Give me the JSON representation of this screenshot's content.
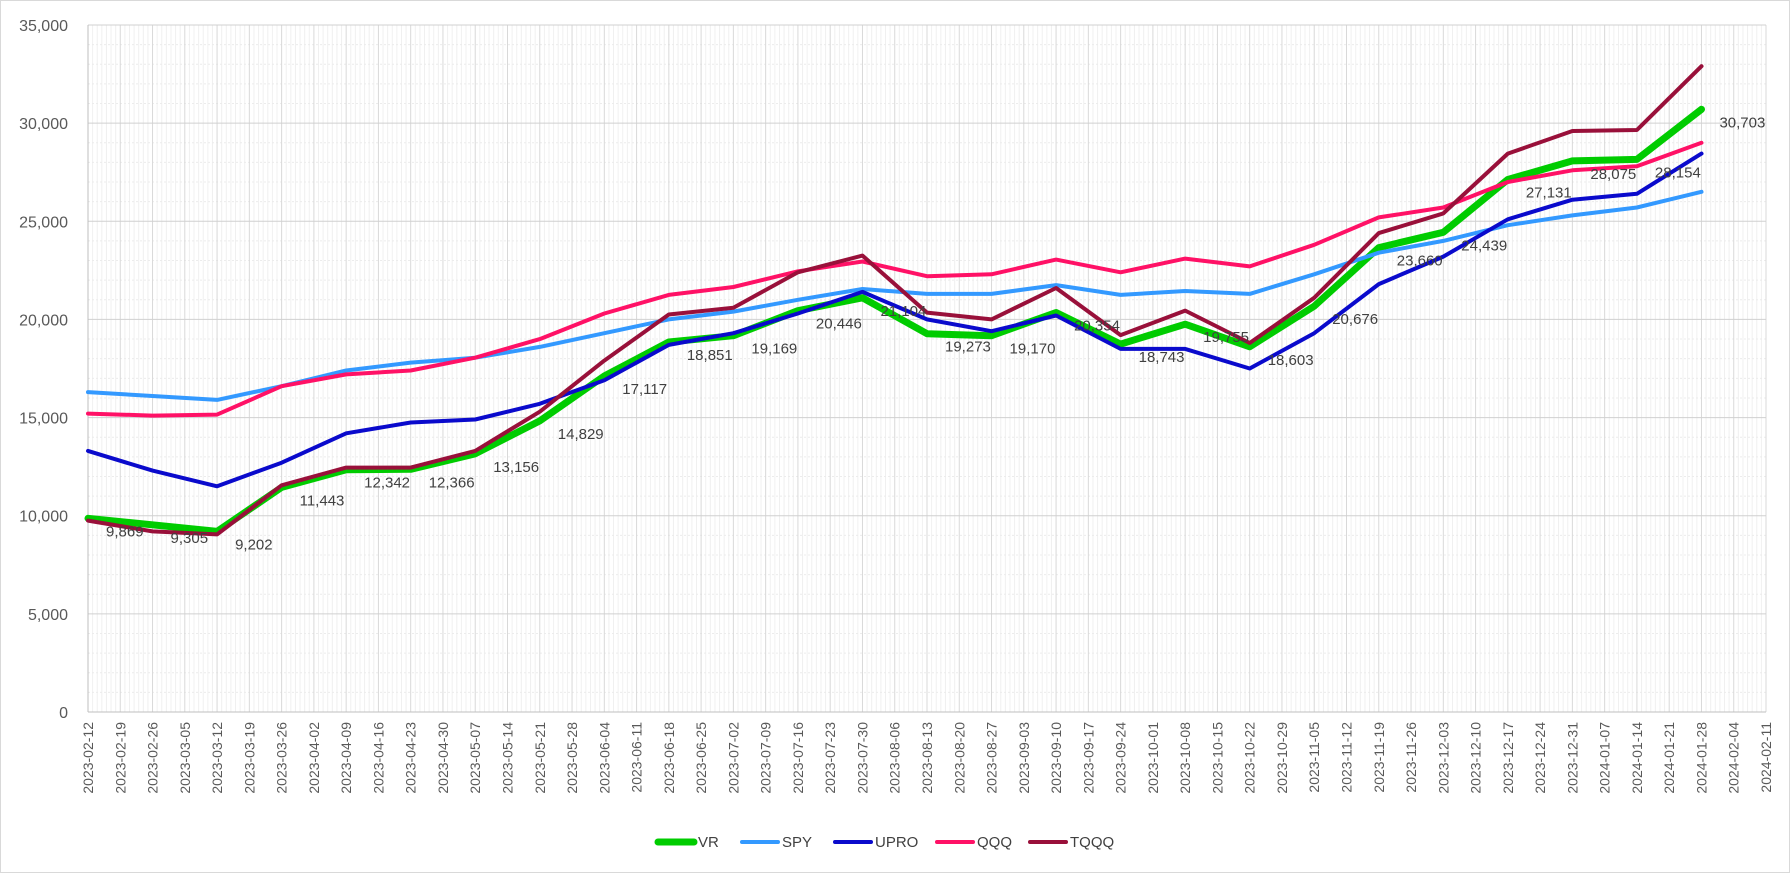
{
  "chart_data": {
    "type": "line",
    "title": "",
    "xlabel": "",
    "ylabel": "",
    "ylim": [
      0,
      35000
    ],
    "y_ticks": [
      0,
      5000,
      10000,
      15000,
      20000,
      25000,
      30000,
      35000
    ],
    "y_tick_labels": [
      "0",
      "5,000",
      "10,000",
      "15,000",
      "20,000",
      "25,000",
      "30,000",
      "35,000"
    ],
    "grid": true,
    "legend": "bottom",
    "x": [
      "2023-02-12",
      "2023-02-19",
      "2023-02-26",
      "2023-03-05",
      "2023-03-12",
      "2023-03-19",
      "2023-03-26",
      "2023-04-02",
      "2023-04-09",
      "2023-04-16",
      "2023-04-23",
      "2023-04-30",
      "2023-05-07",
      "2023-05-14",
      "2023-05-21",
      "2023-05-28",
      "2023-06-04",
      "2023-06-11",
      "2023-06-18",
      "2023-06-25",
      "2023-07-02",
      "2023-07-09",
      "2023-07-16",
      "2023-07-23",
      "2023-07-30",
      "2023-08-06",
      "2023-08-13",
      "2023-08-20",
      "2023-08-27",
      "2023-09-03",
      "2023-09-10",
      "2023-09-17",
      "2023-09-24",
      "2023-10-01",
      "2023-10-08",
      "2023-10-15",
      "2023-10-22",
      "2023-10-29",
      "2023-11-05",
      "2023-11-12",
      "2023-11-19",
      "2023-11-26",
      "2023-12-03",
      "2023-12-10",
      "2023-12-17",
      "2023-12-24",
      "2023-12-31",
      "2024-01-07",
      "2024-01-14",
      "2024-01-21",
      "2024-01-28",
      "2024-02-04",
      "2024-02-11"
    ],
    "series": [
      {
        "name": "VR",
        "color": "#00cc00",
        "width": 7,
        "points": [
          [
            0,
            9869
          ],
          [
            4,
            9202
          ],
          [
            6,
            11443
          ],
          [
            8,
            12342
          ],
          [
            10,
            12366
          ],
          [
            12,
            13156
          ],
          [
            14,
            14829
          ],
          [
            16,
            17117
          ],
          [
            18,
            18851
          ],
          [
            20,
            19169
          ],
          [
            22,
            20446
          ],
          [
            24,
            21104
          ],
          [
            26,
            19273
          ],
          [
            28,
            19170
          ],
          [
            30,
            20354
          ],
          [
            32,
            18743
          ],
          [
            34,
            19755
          ],
          [
            36,
            18603
          ],
          [
            38,
            20676
          ],
          [
            40,
            23660
          ],
          [
            42,
            24439
          ],
          [
            44,
            27131
          ],
          [
            46,
            28075
          ],
          [
            48,
            28154
          ],
          [
            50,
            30703
          ]
        ],
        "labels": [
          {
            "i": 0,
            "text": "9,869",
            "pos": "right"
          },
          {
            "i": 2,
            "text": "9,305",
            "pos": "right"
          },
          {
            "i": 4,
            "text": "9,202",
            "pos": "right"
          },
          {
            "i": 6,
            "text": "11,443",
            "pos": "right"
          },
          {
            "i": 8,
            "text": "12,342",
            "pos": "right"
          },
          {
            "i": 10,
            "text": "12,366",
            "pos": "right"
          },
          {
            "i": 12,
            "text": "13,156",
            "pos": "right"
          },
          {
            "i": 14,
            "text": "14,829",
            "pos": "right"
          },
          {
            "i": 16,
            "text": "17,117",
            "pos": "right"
          },
          {
            "i": 18,
            "text": "18,851",
            "pos": "right"
          },
          {
            "i": 20,
            "text": "19,169",
            "pos": "right"
          },
          {
            "i": 22,
            "text": "20,446",
            "pos": "right"
          },
          {
            "i": 24,
            "text": "21,104",
            "pos": "right"
          },
          {
            "i": 26,
            "text": "19,273",
            "pos": "right"
          },
          {
            "i": 28,
            "text": "19,170",
            "pos": "right"
          },
          {
            "i": 30,
            "text": "20,354",
            "pos": "right"
          },
          {
            "i": 32,
            "text": "18,743",
            "pos": "right"
          },
          {
            "i": 34,
            "text": "19,755",
            "pos": "right"
          },
          {
            "i": 36,
            "text": "18,603",
            "pos": "right"
          },
          {
            "i": 38,
            "text": "20,676",
            "pos": "right"
          },
          {
            "i": 40,
            "text": "23,660",
            "pos": "right"
          },
          {
            "i": 42,
            "text": "24,439",
            "pos": "right"
          },
          {
            "i": 44,
            "text": "27,131",
            "pos": "right"
          },
          {
            "i": 46,
            "text": "28,075",
            "pos": "right"
          },
          {
            "i": 48,
            "text": "28,154",
            "pos": "right"
          },
          {
            "i": 50,
            "text": "30,703",
            "pos": "right"
          }
        ]
      },
      {
        "name": "SPY",
        "color": "#3399ff",
        "width": 4,
        "points": [
          [
            0,
            16300
          ],
          [
            2,
            16100
          ],
          [
            4,
            15900
          ],
          [
            6,
            16600
          ],
          [
            8,
            17400
          ],
          [
            10,
            17800
          ],
          [
            12,
            18050
          ],
          [
            14,
            18600
          ],
          [
            16,
            19300
          ],
          [
            18,
            20000
          ],
          [
            20,
            20400
          ],
          [
            22,
            21000
          ],
          [
            24,
            21550
          ],
          [
            26,
            21300
          ],
          [
            28,
            21300
          ],
          [
            30,
            21750
          ],
          [
            32,
            21250
          ],
          [
            34,
            21450
          ],
          [
            36,
            21300
          ],
          [
            38,
            22300
          ],
          [
            40,
            23400
          ],
          [
            42,
            24000
          ],
          [
            44,
            24800
          ],
          [
            46,
            25300
          ],
          [
            48,
            25700
          ],
          [
            50,
            26500
          ]
        ]
      },
      {
        "name": "UPRO",
        "color": "#0a0acc",
        "width": 4,
        "points": [
          [
            0,
            13300
          ],
          [
            2,
            12300
          ],
          [
            4,
            11500
          ],
          [
            6,
            12700
          ],
          [
            8,
            14200
          ],
          [
            10,
            14750
          ],
          [
            12,
            14900
          ],
          [
            14,
            15700
          ],
          [
            16,
            16900
          ],
          [
            18,
            18700
          ],
          [
            20,
            19300
          ],
          [
            22,
            20300
          ],
          [
            24,
            21400
          ],
          [
            26,
            20000
          ],
          [
            28,
            19400
          ],
          [
            30,
            20200
          ],
          [
            32,
            18500
          ],
          [
            34,
            18500
          ],
          [
            36,
            17500
          ],
          [
            38,
            19300
          ],
          [
            40,
            21800
          ],
          [
            42,
            23200
          ],
          [
            44,
            25100
          ],
          [
            46,
            26100
          ],
          [
            48,
            26400
          ],
          [
            50,
            28450
          ]
        ]
      },
      {
        "name": "QQQ",
        "color": "#ff1166",
        "width": 4,
        "points": [
          [
            0,
            15200
          ],
          [
            2,
            15100
          ],
          [
            4,
            15150
          ],
          [
            6,
            16600
          ],
          [
            8,
            17200
          ],
          [
            10,
            17400
          ],
          [
            12,
            18050
          ],
          [
            14,
            19000
          ],
          [
            16,
            20300
          ],
          [
            18,
            21250
          ],
          [
            20,
            21650
          ],
          [
            22,
            22450
          ],
          [
            24,
            22950
          ],
          [
            26,
            22200
          ],
          [
            28,
            22300
          ],
          [
            30,
            23050
          ],
          [
            32,
            22400
          ],
          [
            34,
            23100
          ],
          [
            36,
            22700
          ],
          [
            38,
            23800
          ],
          [
            40,
            25200
          ],
          [
            42,
            25700
          ],
          [
            44,
            27000
          ],
          [
            46,
            27600
          ],
          [
            48,
            27800
          ],
          [
            50,
            29000
          ]
        ]
      },
      {
        "name": "TQQQ",
        "color": "#99103a",
        "width": 4,
        "points": [
          [
            0,
            9750
          ],
          [
            2,
            9200
          ],
          [
            4,
            9050
          ],
          [
            6,
            11550
          ],
          [
            8,
            12450
          ],
          [
            10,
            12450
          ],
          [
            12,
            13300
          ],
          [
            14,
            15300
          ],
          [
            16,
            17900
          ],
          [
            18,
            20250
          ],
          [
            20,
            20600
          ],
          [
            22,
            22400
          ],
          [
            24,
            23250
          ],
          [
            26,
            20350
          ],
          [
            28,
            20000
          ],
          [
            30,
            21600
          ],
          [
            32,
            19200
          ],
          [
            34,
            20450
          ],
          [
            36,
            18800
          ],
          [
            38,
            21100
          ],
          [
            40,
            24400
          ],
          [
            42,
            25400
          ],
          [
            44,
            28450
          ],
          [
            46,
            29600
          ],
          [
            48,
            29650
          ],
          [
            50,
            32900
          ]
        ]
      }
    ]
  },
  "legend": {
    "items": [
      {
        "name": "VR",
        "color": "#00cc00"
      },
      {
        "name": "SPY",
        "color": "#3399ff"
      },
      {
        "name": "UPRO",
        "color": "#0a0acc"
      },
      {
        "name": "QQQ",
        "color": "#ff1166"
      },
      {
        "name": "TQQQ",
        "color": "#99103a"
      }
    ]
  }
}
